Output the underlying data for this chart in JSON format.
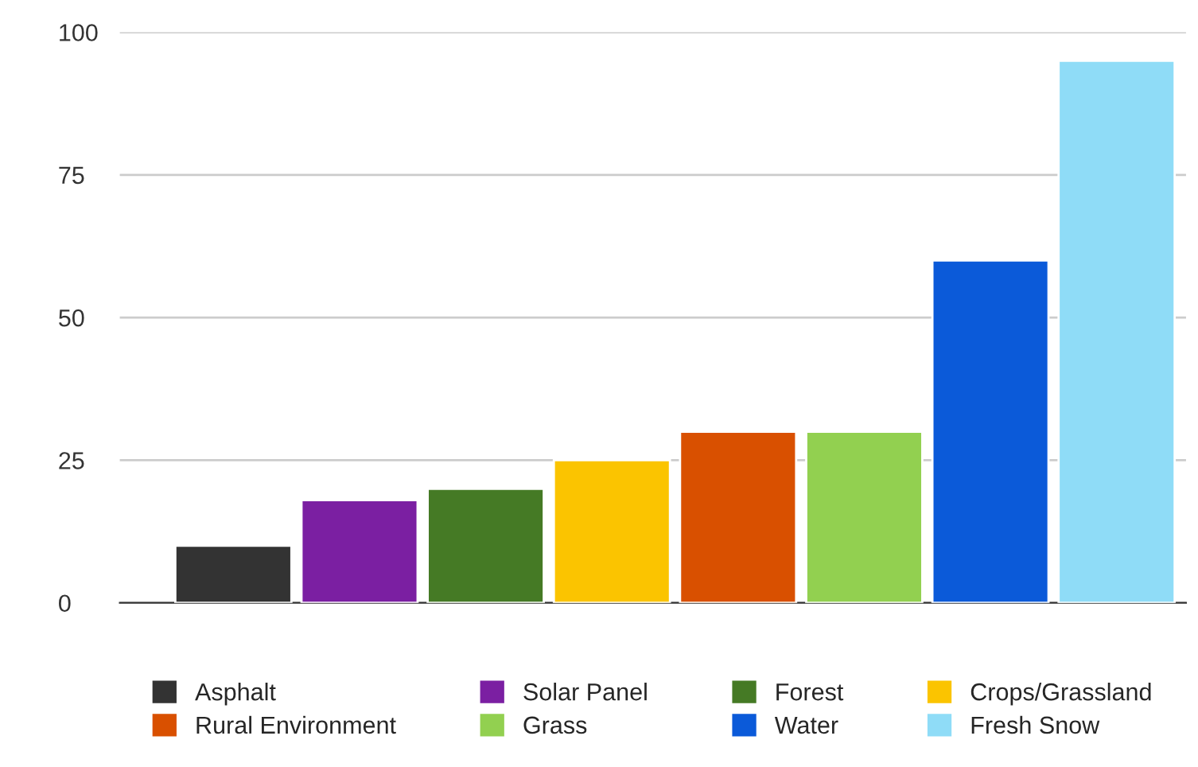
{
  "chart_data": {
    "type": "bar",
    "categories": [
      null,
      null,
      null,
      null,
      null,
      null,
      null,
      null
    ],
    "series": [
      {
        "name": "Asphalt",
        "color": "#333333",
        "values": [
          10,
          null,
          null,
          null,
          null,
          null,
          null,
          null
        ]
      },
      {
        "name": "Solar Panel",
        "color": "#7b1fa2",
        "values": [
          null,
          18,
          null,
          null,
          null,
          null,
          null,
          null
        ]
      },
      {
        "name": "Forest",
        "color": "#457a25",
        "values": [
          null,
          null,
          20,
          null,
          null,
          null,
          null,
          null
        ]
      },
      {
        "name": "Crops/Grassland",
        "color": "#fbc400",
        "values": [
          null,
          null,
          null,
          25,
          null,
          null,
          null,
          null
        ]
      },
      {
        "name": "Rural Environment",
        "color": "#d95000",
        "values": [
          null,
          null,
          null,
          null,
          30,
          null,
          null,
          null
        ]
      },
      {
        "name": "Grass",
        "color": "#92d050",
        "values": [
          null,
          null,
          null,
          null,
          null,
          30,
          null,
          null
        ]
      },
      {
        "name": "Water",
        "color": "#0b5ad9",
        "values": [
          null,
          null,
          null,
          null,
          null,
          null,
          60,
          null
        ]
      },
      {
        "name": "Fresh Snow",
        "color": "#8fdcf7",
        "values": [
          null,
          null,
          null,
          null,
          null,
          null,
          null,
          95
        ]
      }
    ],
    "ylim": [
      0,
      100
    ],
    "yticks": [
      0,
      25,
      50,
      75,
      100
    ],
    "grid": "y",
    "legend": "bottom",
    "tick_labels": "y"
  }
}
